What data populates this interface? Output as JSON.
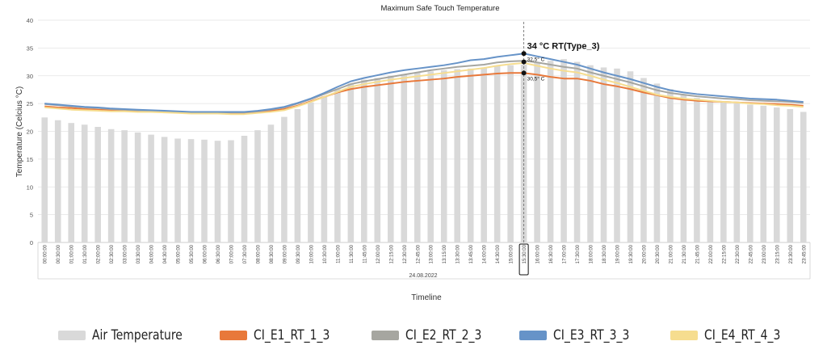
{
  "chart_data": {
    "type": "bar",
    "title": "Maximum Safe Touch Temperature",
    "ylabel": "Temperature (Celcius °C)",
    "xlabel": "Timeline",
    "date_label": "24.08.2022",
    "ylim": [
      0,
      40
    ],
    "yticks": [
      0,
      5,
      10,
      15,
      20,
      25,
      30,
      35,
      40
    ],
    "grid": true,
    "legend_position": "bottom",
    "categories": [
      "00:00:00",
      "00:30:00",
      "01:00:00",
      "01:30:00",
      "02:00:00",
      "02:30:00",
      "03:00:00",
      "03:30:00",
      "04:00:00",
      "04:30:00",
      "05:00:00",
      "05:30:00",
      "06:00:00",
      "06:30:00",
      "07:00:00",
      "07:30:00",
      "08:00:00",
      "08:30:00",
      "09:00:00",
      "09:30:00",
      "10:00:00",
      "10:30:00",
      "11:00:00",
      "11:30:00",
      "11:45:00",
      "12:00:00",
      "12:15:00",
      "12:30:00",
      "12:45:00",
      "13:00:00",
      "13:15:00",
      "13:30:00",
      "13:45:00",
      "14:00:00",
      "14:30:00",
      "15:00:00",
      "15:30:00",
      "16:00:00",
      "16:30:00",
      "17:00:00",
      "17:30:00",
      "18:00:00",
      "18:30:00",
      "19:00:00",
      "19:30:00",
      "20:00:00",
      "20:30:00",
      "21:00:00",
      "21:30:00",
      "21:45:00",
      "22:00:00",
      "22:15:00",
      "22:30:00",
      "22:45:00",
      "23:00:00",
      "23:15:00",
      "23:30:00",
      "23:45:00"
    ],
    "highlight_category": "15:30:00",
    "series": [
      {
        "name": "Air Temperature",
        "kind": "bar",
        "color": "#d9d9d9",
        "values": [
          22.5,
          22.0,
          21.5,
          21.2,
          20.8,
          20.4,
          20.2,
          19.8,
          19.4,
          19.0,
          18.7,
          18.6,
          18.5,
          18.3,
          18.4,
          19.2,
          20.2,
          21.2,
          22.6,
          24.0,
          25.2,
          26.3,
          27.6,
          28.6,
          29.3,
          29.6,
          30.0,
          30.3,
          30.6,
          30.8,
          31.0,
          31.2,
          31.3,
          31.5,
          31.8,
          31.9,
          32.0,
          32.3,
          32.7,
          33.0,
          32.5,
          31.9,
          31.5,
          31.3,
          30.8,
          29.6,
          28.6,
          27.6,
          26.6,
          26.0,
          25.6,
          25.3,
          25.0,
          24.8,
          24.6,
          24.3,
          24.0,
          23.5
        ]
      },
      {
        "name": "CI_E1_RT_1_3",
        "kind": "line",
        "color": "#e8783a",
        "values": [
          24.5,
          24.3,
          24.2,
          24.0,
          23.9,
          23.8,
          23.7,
          23.6,
          23.5,
          23.5,
          23.4,
          23.3,
          23.3,
          23.3,
          23.3,
          23.3,
          23.5,
          23.7,
          24.0,
          24.6,
          25.4,
          26.2,
          27.0,
          27.6,
          28.0,
          28.3,
          28.6,
          28.9,
          29.1,
          29.3,
          29.5,
          29.8,
          30.0,
          30.2,
          30.4,
          30.5,
          30.5,
          30.2,
          29.8,
          29.5,
          29.5,
          29.1,
          28.5,
          28.1,
          27.6,
          27.0,
          26.5,
          26.0,
          25.7,
          25.5,
          25.4,
          25.3,
          25.2,
          25.1,
          25.0,
          24.9,
          24.8,
          24.6
        ]
      },
      {
        "name": "CI_E2_RT_2_3",
        "kind": "line",
        "color": "#a6a6a0",
        "values": [
          24.9,
          24.7,
          24.5,
          24.3,
          24.2,
          24.0,
          23.9,
          23.8,
          23.7,
          23.6,
          23.5,
          23.4,
          23.4,
          23.4,
          23.4,
          23.4,
          23.6,
          23.9,
          24.3,
          25.0,
          25.8,
          26.7,
          27.6,
          28.5,
          29.0,
          29.4,
          29.8,
          30.2,
          30.6,
          31.0,
          31.3,
          31.6,
          31.8,
          32.0,
          32.4,
          32.6,
          32.7,
          32.4,
          32.0,
          31.6,
          31.3,
          30.6,
          30.0,
          29.4,
          28.8,
          28.1,
          27.4,
          26.9,
          26.6,
          26.3,
          26.1,
          25.9,
          25.8,
          25.6,
          25.5,
          25.4,
          25.3,
          25.1
        ]
      },
      {
        "name": "CI_E3_RT_3_3",
        "kind": "line",
        "color": "#6693c8",
        "values": [
          25.0,
          24.8,
          24.6,
          24.4,
          24.3,
          24.1,
          24.0,
          23.9,
          23.8,
          23.7,
          23.6,
          23.5,
          23.5,
          23.5,
          23.5,
          23.5,
          23.7,
          24.0,
          24.4,
          25.1,
          25.9,
          26.9,
          28.0,
          29.0,
          29.6,
          30.1,
          30.6,
          31.0,
          31.3,
          31.6,
          31.9,
          32.3,
          32.8,
          33.0,
          33.4,
          33.7,
          34.0,
          33.5,
          33.0,
          32.5,
          32.0,
          31.3,
          30.6,
          30.0,
          29.4,
          28.7,
          28.0,
          27.4,
          27.0,
          26.7,
          26.5,
          26.3,
          26.1,
          25.9,
          25.8,
          25.7,
          25.5,
          25.3
        ]
      },
      {
        "name": "CI_E4_RT_4_3",
        "kind": "line",
        "color": "#f6dd8f",
        "values": [
          24.3,
          24.1,
          23.9,
          23.8,
          23.7,
          23.6,
          23.6,
          23.5,
          23.5,
          23.4,
          23.3,
          23.2,
          23.2,
          23.2,
          23.1,
          23.1,
          23.3,
          23.5,
          23.8,
          24.5,
          25.3,
          26.2,
          27.1,
          28.0,
          28.5,
          28.9,
          29.3,
          29.6,
          29.9,
          30.2,
          30.5,
          30.8,
          31.1,
          31.4,
          31.8,
          32.1,
          32.3,
          31.8,
          31.3,
          30.9,
          30.6,
          30.0,
          29.3,
          28.7,
          28.0,
          27.3,
          26.6,
          26.2,
          25.9,
          25.7,
          25.5,
          25.3,
          25.2,
          25.0,
          24.9,
          24.7,
          24.6,
          24.4
        ]
      }
    ],
    "annotations": [
      {
        "category": "15:30:00",
        "value": 34,
        "label": "34 °C  RT(Type_3)",
        "size": "large"
      },
      {
        "category": "15:30:00",
        "value": 32.5,
        "label": "32,5° C",
        "size": "small"
      },
      {
        "category": "15:30:00",
        "value": 30.5,
        "label": "30,5° C",
        "size": "small"
      }
    ]
  }
}
